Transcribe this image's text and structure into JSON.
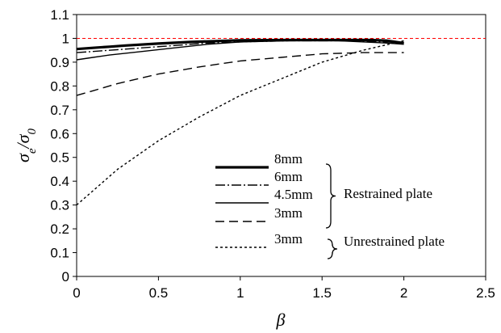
{
  "chart_data": {
    "type": "line",
    "xlabel": "β",
    "ylabel_main": "σ",
    "ylabel_num_sub": "e",
    "ylabel_den_sub": "0",
    "xlim": [
      0,
      2.5
    ],
    "ylim": [
      0,
      1.1
    ],
    "x_ticks": [
      0,
      0.5,
      1,
      1.5,
      2,
      2.5
    ],
    "x_tick_labels": [
      "0",
      "0.5",
      "1",
      "1.5",
      "2",
      "2.5"
    ],
    "y_ticks": [
      0,
      0.1,
      0.2,
      0.3,
      0.4,
      0.5,
      0.6,
      0.7,
      0.8,
      0.9,
      1,
      1.1
    ],
    "y_tick_labels": [
      "0",
      "0.1",
      "0.2",
      "0.3",
      "0.4",
      "0.5",
      "0.6",
      "0.7",
      "0.8",
      "0.9",
      "1",
      "1.1"
    ],
    "grid": false,
    "reference_line": {
      "y": 1,
      "color": "#ff0000",
      "style": "dashed"
    },
    "legend_placement": "lower-center",
    "series": [
      {
        "name": "8mm",
        "group": "Restrained plate",
        "style": "thick-solid",
        "color": "#000000",
        "x": [
          0,
          0.1,
          0.2,
          0.3,
          0.5,
          0.7,
          1,
          1.3,
          1.5,
          1.8,
          1.9,
          2
        ],
        "y": [
          0.955,
          0.96,
          0.965,
          0.97,
          0.978,
          0.985,
          0.992,
          0.993,
          0.993,
          0.993,
          0.99,
          0.98
        ]
      },
      {
        "name": "6mm",
        "group": "Restrained plate",
        "style": "dash-dot",
        "color": "#000000",
        "x": [
          0,
          0.2,
          0.4,
          0.6,
          0.8,
          1,
          1.3,
          1.6,
          1.9,
          2
        ],
        "y": [
          0.94,
          0.95,
          0.96,
          0.97,
          0.98,
          0.985,
          0.99,
          0.99,
          0.985,
          0.98
        ]
      },
      {
        "name": "4.5mm",
        "group": "Restrained plate",
        "style": "solid",
        "color": "#000000",
        "x": [
          0,
          0.1,
          0.2,
          0.4,
          0.6,
          0.8,
          1,
          1.3,
          1.6,
          1.9,
          2
        ],
        "y": [
          0.91,
          0.92,
          0.93,
          0.945,
          0.96,
          0.975,
          0.985,
          0.99,
          0.99,
          0.98,
          0.975
        ]
      },
      {
        "name": "3mm",
        "group": "Restrained plate",
        "style": "long-dash",
        "color": "#000000",
        "x": [
          0,
          0.1,
          0.25,
          0.5,
          0.75,
          1,
          1.25,
          1.5,
          1.75,
          2
        ],
        "y": [
          0.76,
          0.78,
          0.81,
          0.85,
          0.88,
          0.905,
          0.92,
          0.935,
          0.94,
          0.94
        ]
      },
      {
        "name": "3mm",
        "group": "Unrestrained plate",
        "style": "short-dash",
        "color": "#000000",
        "x": [
          0,
          0.1,
          0.25,
          0.5,
          0.75,
          1,
          1.25,
          1.5,
          1.75,
          2
        ],
        "y": [
          0.3,
          0.36,
          0.45,
          0.57,
          0.67,
          0.76,
          0.83,
          0.9,
          0.95,
          0.99
        ]
      }
    ],
    "groups": [
      {
        "name": "Restrained plate",
        "members": [
          0,
          1,
          2,
          3
        ]
      },
      {
        "name": "Unrestrained plate",
        "members": [
          4
        ]
      }
    ]
  }
}
